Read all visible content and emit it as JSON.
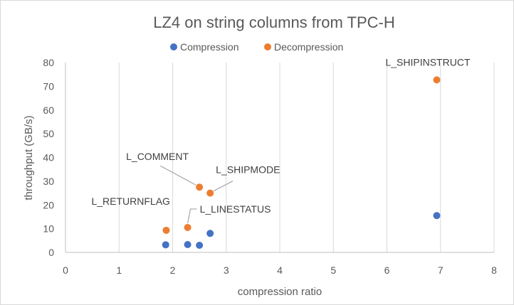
{
  "chart_data": {
    "type": "scatter",
    "title": "LZ4 on string columns from TPC-H",
    "xlabel": "compression ratio",
    "ylabel": "throughput (GB/s)",
    "xlim": [
      0,
      8
    ],
    "ylim": [
      0,
      80
    ],
    "x_ticks": [
      "0",
      "1",
      "2",
      "3",
      "4",
      "5",
      "6",
      "7",
      "8"
    ],
    "y_ticks": [
      "0",
      "10",
      "20",
      "30",
      "40",
      "50",
      "60",
      "70",
      "80"
    ],
    "grid": "vertical",
    "legend_position": "top",
    "series": [
      {
        "name": "Compression",
        "color": "#4472C4",
        "points": [
          {
            "x": 1.87,
            "y": 3.2
          },
          {
            "x": 2.28,
            "y": 3.3
          },
          {
            "x": 2.5,
            "y": 3.0
          },
          {
            "x": 2.7,
            "y": 8.0
          },
          {
            "x": 6.93,
            "y": 15.5
          }
        ]
      },
      {
        "name": "Decompression",
        "color": "#ED7D31",
        "points": [
          {
            "x": 1.88,
            "y": 9.3
          },
          {
            "x": 2.28,
            "y": 10.5
          },
          {
            "x": 2.5,
            "y": 27.5
          },
          {
            "x": 2.7,
            "y": 25.0
          },
          {
            "x": 6.93,
            "y": 72.7
          }
        ]
      }
    ],
    "annotations": [
      {
        "text": "L_RETURNFLAG",
        "series": 1,
        "point": 0,
        "leader": false
      },
      {
        "text": "L_LINESTATUS",
        "series": 1,
        "point": 1,
        "leader": true
      },
      {
        "text": "L_COMMENT",
        "series": 1,
        "point": 2,
        "leader": true
      },
      {
        "text": "L_SHIPMODE",
        "series": 1,
        "point": 3,
        "leader": true
      },
      {
        "text": "L_SHIPINSTRUCT",
        "series": 1,
        "point": 4,
        "leader": false
      }
    ]
  }
}
